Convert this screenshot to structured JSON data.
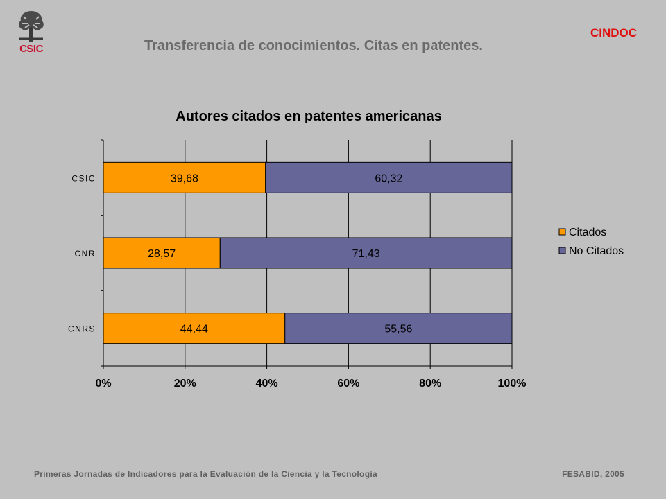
{
  "header": {
    "logo_text": "CSIC",
    "org_label": "CINDOC",
    "title": "Transferencia de conocimientos. Citas en patentes."
  },
  "footer": {
    "left": "Primeras Jornadas de Indicadores para la Evaluación de la Ciencia y la Tecnología",
    "right": "FESABID, 2005"
  },
  "chart_data": {
    "type": "bar",
    "orientation": "horizontal",
    "stacked": "percent",
    "title": "Autores citados en patentes americanas",
    "categories": [
      "CSIC",
      "CNR",
      "CNRS"
    ],
    "category_labels": [
      "CSIC",
      "CNR",
      "CNRS"
    ],
    "series": [
      {
        "name": "Citados",
        "values": [
          39.68,
          28.57,
          44.44
        ],
        "value_labels": [
          "39,68",
          "28,57",
          "44,44"
        ],
        "color": "#ff9900"
      },
      {
        "name": "No Citados",
        "values": [
          60.32,
          71.43,
          55.56
        ],
        "value_labels": [
          "60,32",
          "71,43",
          "55,56"
        ],
        "color": "#666699"
      }
    ],
    "xlim": [
      0,
      100
    ],
    "x_ticks": [
      "0%",
      "20%",
      "40%",
      "60%",
      "80%",
      "100%"
    ],
    "xlabel": "",
    "ylabel": "",
    "grid": true,
    "legend_position": "right"
  }
}
